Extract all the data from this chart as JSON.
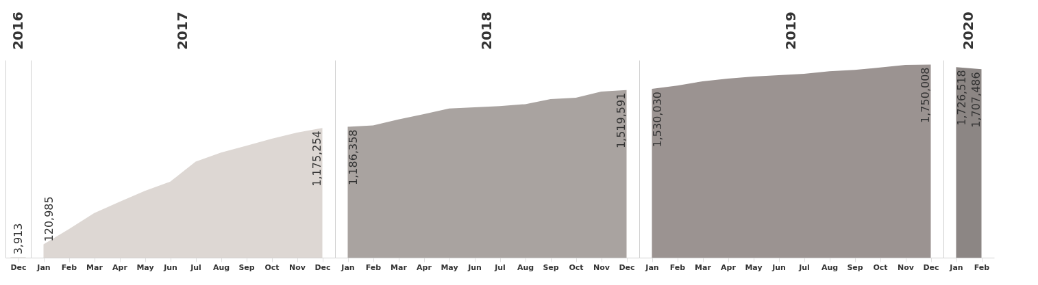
{
  "chart_data": {
    "type": "area",
    "categories": [
      "Dec",
      "Jan",
      "Feb",
      "Mar",
      "Apr",
      "May",
      "Jun",
      "Jul",
      "Aug",
      "Sep",
      "Oct",
      "Nov",
      "Dec",
      "Jan",
      "Feb",
      "Mar",
      "Apr",
      "May",
      "Jun",
      "Jul",
      "Aug",
      "Sep",
      "Oct",
      "Nov",
      "Dec",
      "Jan",
      "Feb",
      "Mar",
      "Apr",
      "May",
      "Jun",
      "Jul",
      "Aug",
      "Sep",
      "Oct",
      "Nov",
      "Dec",
      "Jan",
      "Feb"
    ],
    "ylim": [
      0,
      1790000
    ],
    "tick_labels": "x",
    "annotations": [
      "2016",
      "2017",
      "2018",
      "2019",
      "2020"
    ],
    "series": [
      {
        "type": "bar",
        "color": "#ddd7d3",
        "values": [
          3913,
          null,
          null,
          null,
          null,
          null,
          null,
          null,
          null,
          null,
          null,
          null,
          null,
          null,
          null,
          null,
          null,
          null,
          null,
          null,
          null,
          null,
          null,
          null,
          null,
          null,
          null,
          null,
          null,
          null,
          null,
          null,
          null,
          null,
          null,
          null,
          null,
          null,
          null
        ],
        "value_labels": [
          "3,913",
          null,
          null,
          null,
          null,
          null,
          null,
          null,
          null,
          null,
          null,
          null,
          null,
          null,
          null,
          null,
          null,
          null,
          null,
          null,
          null,
          null,
          null,
          null,
          null,
          null,
          null,
          null,
          null,
          null,
          null,
          null,
          null,
          null,
          null,
          null,
          null,
          null,
          null
        ]
      },
      {
        "color": "#ddd7d3",
        "values": [
          null,
          120985,
          259000,
          404000,
          507000,
          605000,
          689000,
          870000,
          952000,
          1014000,
          1077000,
          1133000,
          1175254,
          null,
          null,
          null,
          null,
          null,
          null,
          null,
          null,
          null,
          null,
          null,
          null,
          null,
          null,
          null,
          null,
          null,
          null,
          null,
          null,
          null,
          null,
          null,
          null,
          null,
          null
        ],
        "value_labels": [
          null,
          "120,985",
          null,
          null,
          null,
          null,
          null,
          null,
          null,
          null,
          null,
          null,
          "1,175,254",
          null,
          null,
          null,
          null,
          null,
          null,
          null,
          null,
          null,
          null,
          null,
          null,
          null,
          null,
          null,
          null,
          null,
          null,
          null,
          null,
          null,
          null,
          null,
          null,
          null,
          null
        ]
      },
      {
        "color": "#a9a3a0",
        "values": [
          null,
          null,
          null,
          null,
          null,
          null,
          null,
          null,
          null,
          null,
          null,
          null,
          null,
          1186358,
          1199000,
          1253000,
          1300000,
          1352000,
          1362000,
          1373000,
          1391000,
          1437000,
          1449000,
          1505000,
          1519591,
          null,
          null,
          null,
          null,
          null,
          null,
          null,
          null,
          null,
          null,
          null,
          null,
          null,
          null
        ],
        "value_labels": [
          null,
          null,
          null,
          null,
          null,
          null,
          null,
          null,
          null,
          null,
          null,
          null,
          null,
          "1,186,358",
          null,
          null,
          null,
          null,
          null,
          null,
          null,
          null,
          null,
          null,
          "1,519,591",
          null,
          null,
          null,
          null,
          null,
          null,
          null,
          null,
          null,
          null,
          null,
          null,
          null,
          null
        ]
      },
      {
        "color": "#9b9391",
        "values": [
          null,
          null,
          null,
          null,
          null,
          null,
          null,
          null,
          null,
          null,
          null,
          null,
          null,
          null,
          null,
          null,
          null,
          null,
          null,
          null,
          null,
          null,
          null,
          null,
          null,
          1530030,
          1560000,
          1598000,
          1622000,
          1642000,
          1653000,
          1666000,
          1690000,
          1701000,
          1723000,
          1747000,
          1750008,
          null,
          null
        ],
        "value_labels": [
          null,
          null,
          null,
          null,
          null,
          null,
          null,
          null,
          null,
          null,
          null,
          null,
          null,
          null,
          null,
          null,
          null,
          null,
          null,
          null,
          null,
          null,
          null,
          null,
          null,
          "1,530,030",
          null,
          null,
          null,
          null,
          null,
          null,
          null,
          null,
          null,
          null,
          "1,750,008",
          null,
          null
        ]
      },
      {
        "color": "#8c8684",
        "values": [
          null,
          null,
          null,
          null,
          null,
          null,
          null,
          null,
          null,
          null,
          null,
          null,
          null,
          null,
          null,
          null,
          null,
          null,
          null,
          null,
          null,
          null,
          null,
          null,
          null,
          null,
          null,
          null,
          null,
          null,
          null,
          null,
          null,
          null,
          null,
          null,
          null,
          1726518,
          1707486
        ],
        "value_labels": [
          null,
          null,
          null,
          null,
          null,
          null,
          null,
          null,
          null,
          null,
          null,
          null,
          null,
          null,
          null,
          null,
          null,
          null,
          null,
          null,
          null,
          null,
          null,
          null,
          null,
          null,
          null,
          null,
          null,
          null,
          null,
          null,
          null,
          null,
          null,
          null,
          null,
          "1,726,518",
          "1,707,486"
        ]
      }
    ]
  }
}
